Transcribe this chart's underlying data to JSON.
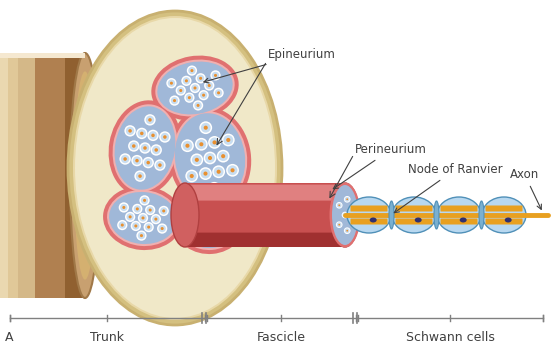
{
  "bg_color": "#ffffff",
  "label_A": "A",
  "label_trunk": "Trunk",
  "label_fascicle": "Fascicle",
  "label_schwann": "Schwann cells",
  "label_epineurium": "Epineurium",
  "label_perineurium": "Perineurium",
  "label_ranvier": "Node of Ranvier",
  "label_axon": "Axon",
  "color_trunk_light": "#c8a070",
  "color_trunk_mid": "#b08050",
  "color_trunk_dark": "#906030",
  "color_epi_border": "#d4c080",
  "color_epi_fill": "#e8d8a8",
  "color_epi_inner": "#f0e8c8",
  "color_perineurium": "#e07070",
  "color_perineurium_inner": "#f0b0b0",
  "color_fascicle_fill": "#a0b8d8",
  "color_fiber_white": "#e8f0f8",
  "color_fiber_center": "#e89030",
  "color_cyl_top": "#e08080",
  "color_cyl_mid": "#c85050",
  "color_cyl_bot": "#a03030",
  "color_axon": "#e8a020",
  "color_schwann_fill": "#b8d8f0",
  "color_schwann_border": "#5090b8",
  "color_myelin": "#e8a020",
  "color_node_dot": "#303070",
  "color_text": "#404040",
  "color_bar": "#808080",
  "figsize": [
    5.54,
    3.53
  ],
  "dpi": 100
}
